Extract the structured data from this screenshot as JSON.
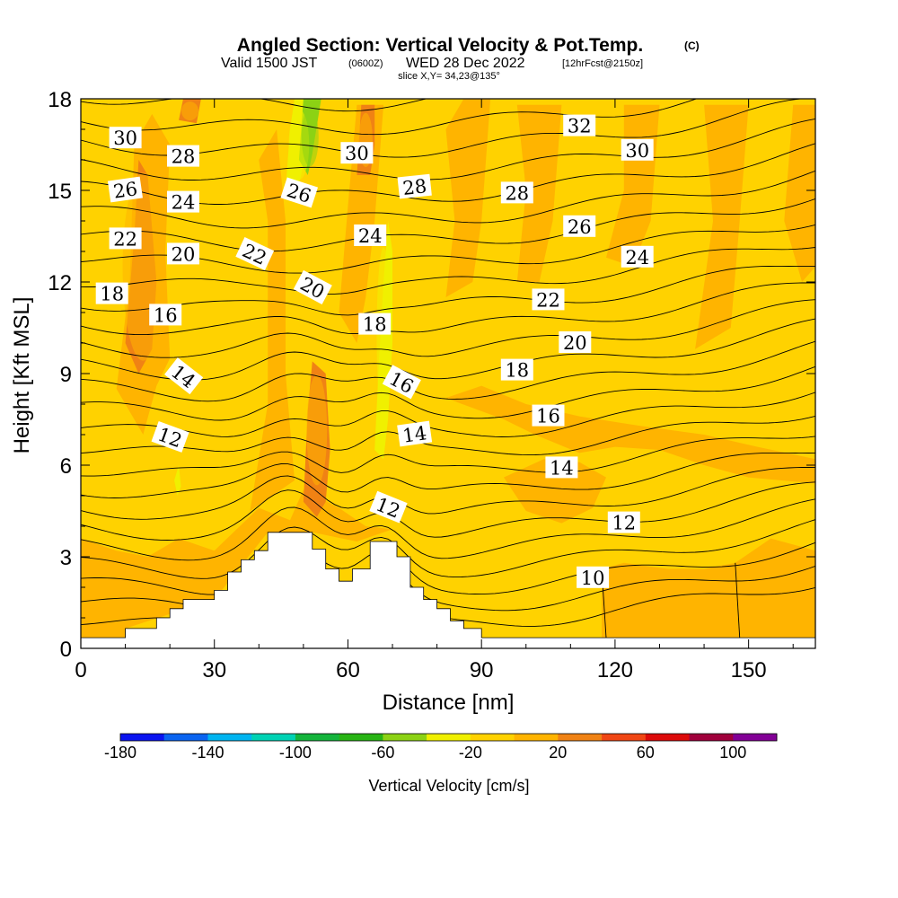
{
  "title": {
    "main": "Angled Section: Vertical Velocity & Pot.Temp.",
    "unit_mark": "(C)",
    "valid_prefix": "Valid 1500 JST",
    "zulu": "(0600Z)",
    "valid_date": "WED 28 Dec 2022",
    "forecast": "[12hrFcst@2150z]",
    "slice": "slice X,Y= 34,23@135°"
  },
  "colorbar": {
    "label": "Vertical Velocity [cm/s]",
    "tick_labels": [
      "-180",
      "-140",
      "-100",
      "-60",
      "-20",
      "20",
      "60",
      "100"
    ],
    "colors": [
      "#0a14f0",
      "#0a64f0",
      "#00b4f0",
      "#00d2b4",
      "#14b43c",
      "#28b414",
      "#8cd214",
      "#f0f000",
      "#ffd200",
      "#ffb400",
      "#f08214",
      "#f04614",
      "#dc0a0a",
      "#a0003c",
      "#820096"
    ]
  },
  "chart_data": {
    "type": "heatmap",
    "xlabel": "Distance [nm]",
    "ylabel": "Height [Kft MSL]",
    "xlim": [
      0,
      165
    ],
    "ylim": [
      0,
      18
    ],
    "x_ticks": [
      "0",
      "30",
      "60",
      "90",
      "120",
      "150"
    ],
    "y_ticks": [
      "0",
      "3",
      "6",
      "9",
      "12",
      "15",
      "18"
    ],
    "background_vertical_velocity": "0 to 20 cm/s",
    "velocity_regions": [
      {
        "band": "20 to 40",
        "x": [
          8,
          20
        ],
        "y": [
          8.5,
          16.5
        ]
      },
      {
        "band": "20 to 40",
        "x": [
          50,
          56
        ],
        "y": [
          4.8,
          9.5
        ]
      },
      {
        "band": "20 to 40",
        "x": [
          62,
          66
        ],
        "y": [
          15.5,
          17.8
        ]
      },
      {
        "band": "20 to 40",
        "x": [
          22,
          27
        ],
        "y": [
          17.2,
          18
        ]
      },
      {
        "band": "-20 to 0",
        "x": [
          46,
          52
        ],
        "y": [
          15,
          18
        ]
      },
      {
        "band": "-20 to 0",
        "x": [
          66,
          70
        ],
        "y": [
          6.5,
          14
        ]
      },
      {
        "band": "-60 to -40",
        "x": [
          49,
          54
        ],
        "y": [
          15.5,
          18
        ]
      }
    ],
    "terrain_kft": [
      [
        0,
        0.35
      ],
      [
        10,
        0.35
      ],
      [
        10,
        0.65
      ],
      [
        17,
        0.65
      ],
      [
        17,
        1.0
      ],
      [
        20,
        1.0
      ],
      [
        20,
        1.3
      ],
      [
        23,
        1.3
      ],
      [
        23,
        1.6
      ],
      [
        30,
        1.6
      ],
      [
        30,
        1.9
      ],
      [
        33,
        1.9
      ],
      [
        33,
        2.5
      ],
      [
        36,
        2.5
      ],
      [
        36,
        2.9
      ],
      [
        39,
        2.9
      ],
      [
        39,
        3.2
      ],
      [
        42,
        3.2
      ],
      [
        42,
        3.8
      ],
      [
        52,
        3.8
      ],
      [
        52,
        3.25
      ],
      [
        55,
        3.25
      ],
      [
        55,
        2.6
      ],
      [
        58,
        2.6
      ],
      [
        58,
        2.2
      ],
      [
        61,
        2.2
      ],
      [
        61,
        2.6
      ],
      [
        65,
        2.6
      ],
      [
        65,
        3.5
      ],
      [
        71,
        3.5
      ],
      [
        71,
        3.0
      ],
      [
        74,
        3.0
      ],
      [
        74,
        2.0
      ],
      [
        77,
        2.0
      ],
      [
        77,
        1.6
      ],
      [
        80,
        1.6
      ],
      [
        80,
        1.3
      ],
      [
        83,
        1.3
      ],
      [
        83,
        0.9
      ],
      [
        86,
        0.9
      ],
      [
        86,
        0.65
      ],
      [
        90,
        0.65
      ],
      [
        90,
        0.35
      ],
      [
        165,
        0.35
      ]
    ],
    "theta_contour_labels": [
      {
        "value": "30",
        "x": 10,
        "y": 16.7,
        "angle": 0
      },
      {
        "value": "28",
        "x": 23,
        "y": 16.1,
        "angle": 0
      },
      {
        "value": "26",
        "x": 10,
        "y": 15.0,
        "angle": -8
      },
      {
        "value": "24",
        "x": 23,
        "y": 14.6,
        "angle": 0
      },
      {
        "value": "22",
        "x": 10,
        "y": 13.4,
        "angle": 0
      },
      {
        "value": "20",
        "x": 23,
        "y": 12.9,
        "angle": 0
      },
      {
        "value": "18",
        "x": 7,
        "y": 11.6,
        "angle": 0
      },
      {
        "value": "16",
        "x": 19,
        "y": 10.9,
        "angle": 0
      },
      {
        "value": "14",
        "x": 23,
        "y": 8.9,
        "angle": 38
      },
      {
        "value": "12",
        "x": 20,
        "y": 6.9,
        "angle": 20
      },
      {
        "value": "22",
        "x": 39,
        "y": 12.9,
        "angle": 25
      },
      {
        "value": "26",
        "x": 49,
        "y": 14.9,
        "angle": 18
      },
      {
        "value": "20",
        "x": 52,
        "y": 11.8,
        "angle": 28
      },
      {
        "value": "30",
        "x": 62,
        "y": 16.2,
        "angle": 0
      },
      {
        "value": "24",
        "x": 65,
        "y": 13.5,
        "angle": 0
      },
      {
        "value": "28",
        "x": 75,
        "y": 15.1,
        "angle": -6
      },
      {
        "value": "18",
        "x": 66,
        "y": 10.6,
        "angle": 0
      },
      {
        "value": "16",
        "x": 72,
        "y": 8.7,
        "angle": 28
      },
      {
        "value": "14",
        "x": 75,
        "y": 7.0,
        "angle": -8
      },
      {
        "value": "12",
        "x": 69,
        "y": 4.6,
        "angle": 22
      },
      {
        "value": "32",
        "x": 112,
        "y": 17.1,
        "angle": 0
      },
      {
        "value": "30",
        "x": 125,
        "y": 16.3,
        "angle": 0
      },
      {
        "value": "28",
        "x": 98,
        "y": 14.9,
        "angle": 0
      },
      {
        "value": "26",
        "x": 112,
        "y": 13.8,
        "angle": 0
      },
      {
        "value": "24",
        "x": 125,
        "y": 12.8,
        "angle": 0
      },
      {
        "value": "22",
        "x": 105,
        "y": 11.4,
        "angle": 0
      },
      {
        "value": "20",
        "x": 111,
        "y": 10.0,
        "angle": 0
      },
      {
        "value": "18",
        "x": 98,
        "y": 9.1,
        "angle": 0
      },
      {
        "value": "16",
        "x": 105,
        "y": 7.6,
        "angle": 0
      },
      {
        "value": "14",
        "x": 108,
        "y": 5.9,
        "angle": 0
      },
      {
        "value": "12",
        "x": 122,
        "y": 4.1,
        "angle": 0
      },
      {
        "value": "10",
        "x": 115,
        "y": 2.3,
        "angle": 0
      }
    ]
  }
}
